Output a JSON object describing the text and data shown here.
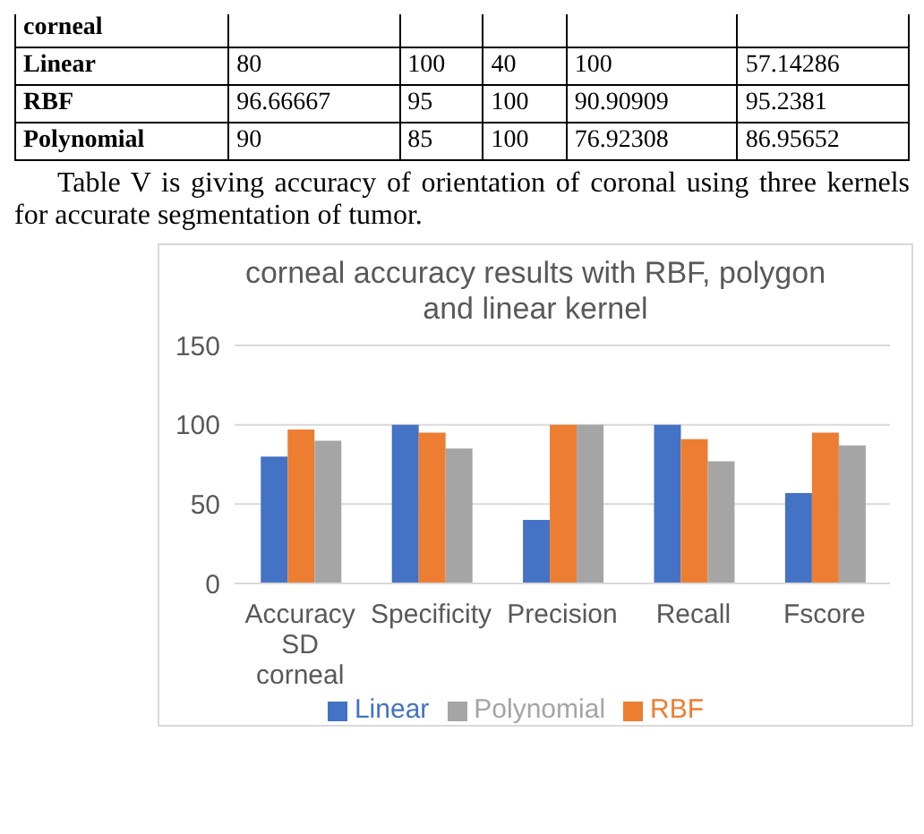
{
  "chart_data": [
    {
      "type": "other",
      "annotations": [
        "corneal",
        "Linear",
        "80",
        "100",
        "40",
        "100",
        "57.14286",
        "RBF",
        "96.66667",
        "95",
        "100",
        "90.90909",
        "95.2381",
        "Polynomial",
        "90",
        "85",
        "100",
        "76.92308",
        "86.95652",
        "Table V is giving accuracy of orientation of coronal using three kernels for accurate segmentation of tumor."
      ]
    },
    {
      "type": "bar",
      "title": "corneal accuracy results with RBF, polygon and linear kernel",
      "categories": [
        "Accuracy SD corneal",
        "Specificity",
        "Precision",
        "Recall",
        "Fscore"
      ],
      "series": [
        {
          "name": "Linear",
          "color": "#4472c4",
          "values": [
            80,
            100,
            40,
            100,
            57
          ]
        },
        {
          "name": "RBF",
          "color": "#ed7d31",
          "values": [
            97,
            95,
            100,
            91,
            95
          ]
        },
        {
          "name": "Polynomial",
          "color": "#a5a5a5",
          "values": [
            90,
            85,
            100,
            77,
            87
          ]
        }
      ],
      "ylim": [
        0,
        150
      ],
      "yticks": [
        0,
        50,
        100,
        150
      ],
      "grid": "y",
      "legend": "bottom"
    }
  ]
}
